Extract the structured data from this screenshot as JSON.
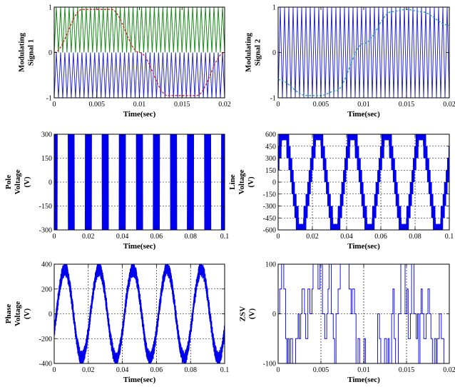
{
  "chart_data": [
    {
      "id": "p1",
      "type": "line",
      "ylabel": [
        "Modulating",
        "Signal 1"
      ],
      "xlabel": "Time(sec)",
      "xlim": [
        0,
        0.02
      ],
      "ylim": [
        -1,
        1
      ],
      "xticks": [
        0,
        0.005,
        0.01,
        0.015,
        0.02
      ],
      "xtick_labels": [
        "0",
        "0.005",
        "0.01",
        "0.015",
        "0.02"
      ],
      "yticks": [
        -1,
        0,
        1
      ],
      "ytick_labels": [
        "-1",
        "0",
        "1"
      ],
      "grid": false,
      "series": [
        {
          "kind": "carrier_upper",
          "color": "#1a8c1a",
          "freq_hz": 2000,
          "range": [
            0,
            1
          ]
        },
        {
          "kind": "carrier_lower",
          "color": "#2a2acc",
          "freq_hz": 2000,
          "range": [
            -1,
            0
          ]
        },
        {
          "kind": "modulating",
          "color": "#d02020",
          "x": [
            0,
            0.0033,
            0.005,
            0.0067,
            0.01,
            0.0133,
            0.015,
            0.0167,
            0.02
          ],
          "y": [
            0,
            0.95,
            0.95,
            0.95,
            0,
            -0.95,
            -0.95,
            -0.95,
            0
          ]
        }
      ]
    },
    {
      "id": "p2",
      "type": "line",
      "ylabel": [
        "Modulating",
        "Signal 2"
      ],
      "xlabel": "Time(sec)",
      "xlim": [
        0,
        0.02
      ],
      "ylim": [
        -1,
        1
      ],
      "xticks": [
        0,
        0.005,
        0.01,
        0.015,
        0.02
      ],
      "xtick_labels": [
        "0",
        "0.005",
        "0.01",
        "0.015",
        "0.02"
      ],
      "yticks": [
        -1,
        0,
        1
      ],
      "ytick_labels": [
        "-1",
        "0",
        "1"
      ],
      "grid": false,
      "series": [
        {
          "kind": "carrier_full",
          "color": "#2a2acc",
          "freq_hz": 2000,
          "range": [
            -1,
            1
          ]
        },
        {
          "kind": "modulating",
          "color": "#20a0a0",
          "x": [
            0,
            0.0033,
            0.005,
            0.0067,
            0.01,
            0.0133,
            0.015,
            0.0167,
            0.02
          ],
          "y": [
            -0.6,
            -0.95,
            -0.95,
            -0.85,
            0.2,
            0.9,
            0.95,
            0.9,
            0.6
          ]
        }
      ]
    },
    {
      "id": "p3",
      "type": "line",
      "ylabel": [
        "Pole",
        "Voltage",
        "(V)"
      ],
      "xlabel": "Time(sec)",
      "xlim": [
        0,
        0.1
      ],
      "ylim": [
        -300,
        300
      ],
      "xticks": [
        0,
        0.02,
        0.04,
        0.06,
        0.08,
        0.1
      ],
      "xtick_labels": [
        "0",
        "0.02",
        "0.04",
        "0.06",
        "0.08",
        "0.1"
      ],
      "yticks": [
        -300,
        -150,
        0,
        150,
        300
      ],
      "ytick_labels": [
        "-300",
        "-150",
        "0",
        "150",
        "300"
      ],
      "grid": true,
      "series": [
        {
          "kind": "pole",
          "color": "#0000ee",
          "amplitude": 300,
          "fundamental_hz": 50
        }
      ]
    },
    {
      "id": "p4",
      "type": "line",
      "ylabel": [
        "Line",
        "Voltage",
        "(V)"
      ],
      "xlabel": "Time(sec)",
      "xlim": [
        0,
        0.1
      ],
      "ylim": [
        -600,
        600
      ],
      "xticks": [
        0,
        0.02,
        0.04,
        0.06,
        0.08,
        0.1
      ],
      "xtick_labels": [
        "0",
        "0.02",
        "0.04",
        "0.06",
        "0.08",
        "0.1"
      ],
      "yticks": [
        -600,
        -450,
        -300,
        -150,
        0,
        150,
        300,
        450,
        600
      ],
      "ytick_labels": [
        "-600",
        "-450",
        "-300",
        "-150",
        "0",
        "150",
        "300",
        "450",
        "600"
      ],
      "grid": true,
      "series": [
        {
          "kind": "line",
          "color": "#0000ee",
          "amplitude": 600,
          "fundamental_hz": 50
        }
      ]
    },
    {
      "id": "p5",
      "type": "line",
      "ylabel": [
        "Phase",
        "Voltage",
        "(V)"
      ],
      "xlabel": "Time(sec)",
      "xlim": [
        0,
        0.1
      ],
      "ylim": [
        -400,
        400
      ],
      "xticks": [
        0,
        0.02,
        0.04,
        0.06,
        0.08,
        0.1
      ],
      "xtick_labels": [
        "0",
        "0.02",
        "0.04",
        "0.06",
        "0.08",
        "0.1"
      ],
      "yticks": [
        -400,
        -200,
        0,
        200,
        400
      ],
      "ytick_labels": [
        "-400",
        "-200",
        "0",
        "200",
        "400"
      ],
      "grid": true,
      "series": [
        {
          "kind": "phase",
          "color": "#0000ee",
          "amplitude": 400,
          "fundamental_hz": 50
        }
      ]
    },
    {
      "id": "p6",
      "type": "line",
      "ylabel": [
        "ZSV",
        "(V)"
      ],
      "xlabel": "Time(sec)",
      "xlim": [
        0,
        0.02
      ],
      "ylim": [
        -100,
        100
      ],
      "xticks": [
        0,
        0.005,
        0.01,
        0.015,
        0.02
      ],
      "xtick_labels": [
        "0",
        "0.005",
        "0.01",
        "0.015",
        "0.02"
      ],
      "yticks": [
        -100,
        0,
        100
      ],
      "ytick_labels": [
        "-100",
        "0",
        "100"
      ],
      "grid": true,
      "series": [
        {
          "kind": "zsv",
          "color": "#0000ee",
          "levels": [
            -100,
            -50,
            0,
            50,
            100
          ]
        }
      ]
    }
  ]
}
